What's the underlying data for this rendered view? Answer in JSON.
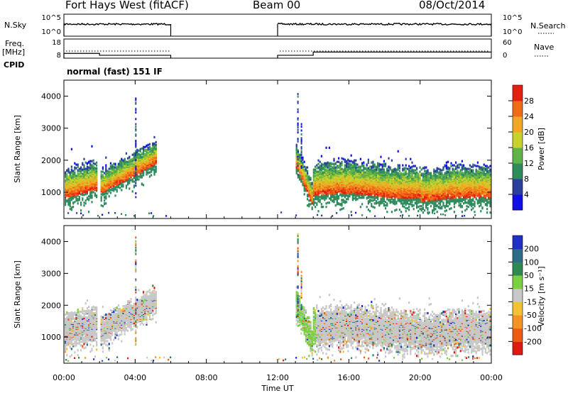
{
  "header": {
    "title": "Fort Hays West (fitACF)",
    "beam": "Beam 00",
    "date": "08/Oct/2014"
  },
  "panel_labels": {
    "nsky": "N.Sky",
    "nsearch": "N.Search",
    "freq_line1": "Freq.",
    "freq_line2": "[MHz]",
    "nave": "Nave",
    "cpid": "CPID",
    "cpid_value": "normal (fast) 151 IF"
  },
  "colors": {
    "noise_line": "#000000",
    "range_gate_bg": "#ffffff"
  },
  "chart_data": [
    {
      "type": "line",
      "panel": "noise",
      "left_axis_ticks": [
        "10^5",
        "10^0"
      ],
      "right_axis_ticks": [
        "10^5",
        "10^0"
      ],
      "segments_hours": [
        [
          0,
          6
        ],
        [
          12,
          24
        ]
      ],
      "series": [
        {
          "name": "N.Sky",
          "style": "solid"
        },
        {
          "name": "N.Search",
          "style": "dotted"
        }
      ]
    },
    {
      "type": "line",
      "panel": "frequency",
      "left_axis_ticks": [
        "18",
        "8"
      ],
      "right_axis_ticks": [
        "60",
        "0"
      ],
      "series": [
        {
          "name": "Freq.",
          "style": "solid",
          "x": [
            0,
            2,
            2,
            6,
            12,
            14,
            14,
            24
          ],
          "y": [
            10.5,
            10.5,
            9.5,
            9.5,
            9.5,
            9.5,
            11.2,
            11.2
          ]
        },
        {
          "name": "Nave",
          "style": "dotted",
          "x": [
            0,
            6,
            12,
            24
          ],
          "y": [
            20,
            20,
            20,
            20
          ]
        }
      ]
    },
    {
      "type": "heatmap",
      "panel": "power",
      "xlabel": "Time UT",
      "ylabel": "Slant Range [km]",
      "xlim": [
        0,
        24
      ],
      "ylim": [
        180,
        4500
      ],
      "x_ticks": [
        "00:00",
        "04:00",
        "08:00",
        "12:00",
        "16:00",
        "20:00",
        "00:00"
      ],
      "y_ticks": [
        1000,
        2000,
        3000,
        4000
      ],
      "colorbar": {
        "label": "Power [dB]",
        "ticks": [
          "4",
          "8",
          "12",
          "16",
          "20",
          "24",
          "28"
        ],
        "colors": [
          "#1010e6",
          "#2c3f9a",
          "#2f8a5c",
          "#60b348",
          "#c8d22a",
          "#f0a824",
          "#f06a17",
          "#e61e12"
        ]
      },
      "echo_bands": [
        {
          "t": [
            0.0,
            1.8
          ],
          "center": [
            1200,
            1450
          ],
          "width": 380
        },
        {
          "t": [
            2.0,
            5.2
          ],
          "center": [
            1250,
            2200
          ],
          "width": 300
        },
        {
          "t": [
            13.0,
            13.9
          ],
          "center": [
            2100,
            950
          ],
          "width": 300
        },
        {
          "t": [
            13.9,
            24.0
          ],
          "center": [
            1300,
            1150
          ],
          "width": 420
        }
      ]
    },
    {
      "type": "heatmap",
      "panel": "velocity",
      "xlabel": "Time UT",
      "ylabel": "Slant Range [km]",
      "xlim": [
        0,
        24
      ],
      "ylim": [
        180,
        4500
      ],
      "x_ticks": [
        "00:00",
        "04:00",
        "08:00",
        "12:00",
        "16:00",
        "20:00",
        "00:00"
      ],
      "y_ticks": [
        1000,
        2000,
        3000,
        4000
      ],
      "colorbar": {
        "label": "Velocity [m s⁻¹]",
        "ticks": [
          "200",
          "100",
          "50",
          "15",
          "-15",
          "-50",
          "-100",
          "-200"
        ],
        "colors": [
          "#1f2fc7",
          "#2d6d8a",
          "#2e8a52",
          "#7ad040",
          "#c8c8c8",
          "#f2c232",
          "#f29326",
          "#f05a17",
          "#e01a12"
        ]
      }
    }
  ]
}
